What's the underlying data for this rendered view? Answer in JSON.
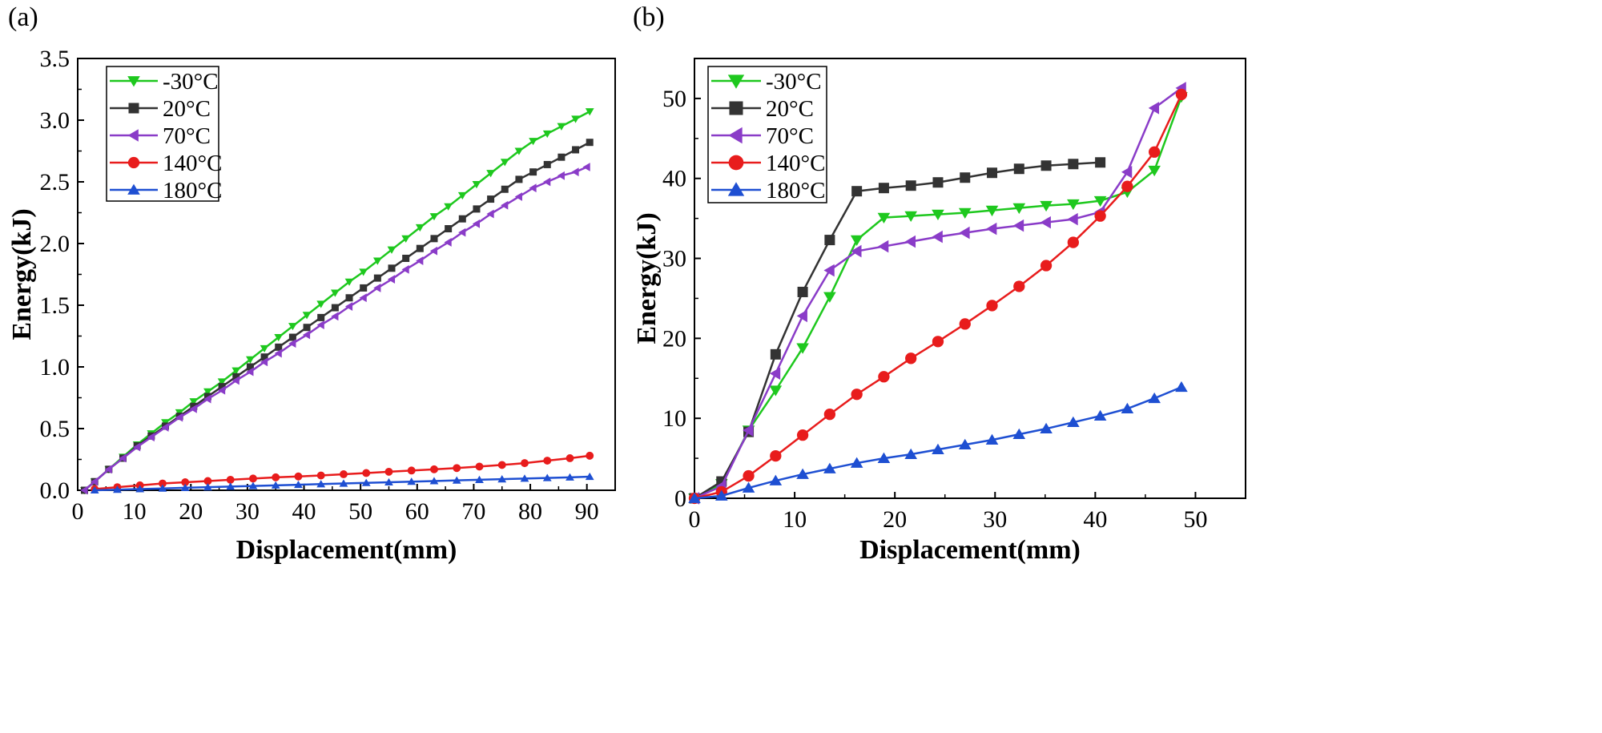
{
  "chart_data": [
    {
      "type": "line",
      "panel_label": "(a)",
      "xlabel": "Displacement(mm)",
      "ylabel": "Energy(kJ)",
      "xlim": [
        0,
        95
      ],
      "ylim": [
        0,
        3.5
      ],
      "xticks": [
        0,
        10,
        20,
        30,
        40,
        50,
        60,
        70,
        80,
        90
      ],
      "xtick_labels": [
        "0",
        "10",
        "20",
        "30",
        "40",
        "50",
        "60",
        "70",
        "80",
        "90"
      ],
      "yticks": [
        0,
        0.5,
        1.0,
        1.5,
        2.0,
        2.5,
        3.0,
        3.5
      ],
      "ytick_labels": [
        "0.0",
        "0.5",
        "1.0",
        "1.5",
        "2.0",
        "2.5",
        "3.0",
        "3.5"
      ],
      "legend_position": "top-left",
      "series": [
        {
          "name": "-30°C",
          "color": "#1ec81e",
          "marker": "triangle-down",
          "x": [
            1.2,
            3,
            5.5,
            8,
            10.5,
            13,
            15.5,
            18,
            20.5,
            23,
            25.5,
            28,
            30.5,
            33,
            35.5,
            38,
            40.5,
            43,
            45.5,
            48,
            50.5,
            53,
            55.5,
            58,
            60.5,
            63,
            65.5,
            68,
            70.5,
            73,
            75.5,
            78,
            80.5,
            83,
            85.5,
            88,
            90.5
          ],
          "y": [
            0.0,
            0.07,
            0.17,
            0.27,
            0.37,
            0.46,
            0.55,
            0.63,
            0.72,
            0.8,
            0.88,
            0.97,
            1.06,
            1.15,
            1.24,
            1.33,
            1.42,
            1.51,
            1.6,
            1.69,
            1.77,
            1.86,
            1.95,
            2.04,
            2.13,
            2.22,
            2.3,
            2.39,
            2.48,
            2.57,
            2.66,
            2.75,
            2.83,
            2.89,
            2.95,
            3.01,
            3.07
          ]
        },
        {
          "name": "20°C",
          "color": "#333333",
          "marker": "square",
          "x": [
            1.2,
            3,
            5.5,
            8,
            10.5,
            13,
            15.5,
            18,
            20.5,
            23,
            25.5,
            28,
            30.5,
            33,
            35.5,
            38,
            40.5,
            43,
            45.5,
            48,
            50.5,
            53,
            55.5,
            58,
            60.5,
            63,
            65.5,
            68,
            70.5,
            73,
            75.5,
            78,
            80.5,
            83,
            85.5,
            88,
            90.5
          ],
          "y": [
            0.0,
            0.07,
            0.17,
            0.26,
            0.36,
            0.44,
            0.52,
            0.6,
            0.68,
            0.76,
            0.84,
            0.92,
            1.0,
            1.08,
            1.16,
            1.24,
            1.32,
            1.4,
            1.48,
            1.56,
            1.64,
            1.72,
            1.8,
            1.88,
            1.96,
            2.04,
            2.12,
            2.2,
            2.28,
            2.36,
            2.44,
            2.52,
            2.58,
            2.64,
            2.7,
            2.76,
            2.82
          ]
        },
        {
          "name": "70°C",
          "color": "#8a3cc8",
          "marker": "triangle-left",
          "x": [
            1.2,
            3,
            5.5,
            8,
            10.5,
            13,
            15.5,
            18,
            20.5,
            23,
            25.5,
            28,
            30.5,
            33,
            35.5,
            38,
            40.5,
            43,
            45.5,
            48,
            50.5,
            53,
            55.5,
            58,
            60.5,
            63,
            65.5,
            68,
            70.5,
            73,
            75.5,
            78,
            80.5,
            83,
            85.5,
            88,
            90
          ],
          "y": [
            0.0,
            0.07,
            0.17,
            0.26,
            0.35,
            0.43,
            0.51,
            0.59,
            0.66,
            0.74,
            0.81,
            0.89,
            0.96,
            1.04,
            1.11,
            1.19,
            1.26,
            1.34,
            1.41,
            1.49,
            1.56,
            1.64,
            1.71,
            1.79,
            1.86,
            1.94,
            2.01,
            2.09,
            2.16,
            2.24,
            2.31,
            2.38,
            2.45,
            2.5,
            2.55,
            2.58,
            2.62
          ]
        },
        {
          "name": "140°C",
          "color": "#e81c1c",
          "marker": "circle",
          "x": [
            3,
            7,
            11,
            15,
            19,
            23,
            27,
            31,
            35,
            39,
            43,
            47,
            51,
            55,
            59,
            63,
            67,
            71,
            75,
            79,
            83,
            87,
            90.5
          ],
          "y": [
            0.01,
            0.025,
            0.04,
            0.055,
            0.065,
            0.075,
            0.085,
            0.095,
            0.105,
            0.112,
            0.12,
            0.13,
            0.14,
            0.15,
            0.16,
            0.17,
            0.18,
            0.192,
            0.205,
            0.22,
            0.24,
            0.26,
            0.28
          ]
        },
        {
          "name": "180°C",
          "color": "#1e4fd2",
          "marker": "triangle-up",
          "x": [
            3,
            7,
            11,
            15,
            19,
            23,
            27,
            31,
            35,
            39,
            43,
            47,
            51,
            55,
            59,
            63,
            67,
            71,
            75,
            79,
            83,
            87,
            90.5
          ],
          "y": [
            0.0,
            0.005,
            0.01,
            0.015,
            0.02,
            0.025,
            0.03,
            0.035,
            0.04,
            0.045,
            0.05,
            0.055,
            0.06,
            0.065,
            0.07,
            0.075,
            0.08,
            0.085,
            0.09,
            0.095,
            0.1,
            0.105,
            0.11
          ]
        }
      ]
    },
    {
      "type": "line",
      "panel_label": "(b)",
      "xlabel": "Displacement(mm)",
      "ylabel": "Energy(kJ)",
      "xlim": [
        0,
        55
      ],
      "ylim": [
        0,
        55
      ],
      "xticks": [
        0,
        10,
        20,
        30,
        40,
        50
      ],
      "xtick_labels": [
        "0",
        "10",
        "20",
        "30",
        "40",
        "50"
      ],
      "yticks": [
        0,
        10,
        20,
        30,
        40,
        50
      ],
      "ytick_labels": [
        "0",
        "10",
        "20",
        "30",
        "40",
        "50"
      ],
      "legend_position": "top-left",
      "series": [
        {
          "name": "-30°C",
          "color": "#1ec81e",
          "marker": "triangle-down",
          "x": [
            0,
            2.7,
            5.4,
            8.1,
            10.8,
            13.5,
            16.2,
            18.9,
            21.6,
            24.3,
            27,
            29.7,
            32.4,
            35.1,
            37.8,
            40.5,
            43.2,
            45.9,
            48.6
          ],
          "y": [
            0,
            1.8,
            8.5,
            13.5,
            18.8,
            25.2,
            32.3,
            35.1,
            35.3,
            35.5,
            35.7,
            36.0,
            36.3,
            36.6,
            36.8,
            37.2,
            38.3,
            41.0,
            50.2
          ]
        },
        {
          "name": "20°C",
          "color": "#333333",
          "marker": "square",
          "x": [
            0,
            2.7,
            5.4,
            8.1,
            10.8,
            13.5,
            16.2,
            18.9,
            21.6,
            24.3,
            27,
            29.7,
            32.4,
            35.1,
            37.8,
            40.5
          ],
          "y": [
            0,
            2.1,
            8.3,
            18.0,
            25.8,
            32.3,
            38.4,
            38.8,
            39.1,
            39.5,
            40.1,
            40.7,
            41.2,
            41.6,
            41.8,
            42.0
          ]
        },
        {
          "name": "70°C",
          "color": "#8a3cc8",
          "marker": "triangle-left",
          "x": [
            0,
            2.7,
            5.4,
            8.1,
            10.8,
            13.5,
            16.2,
            18.9,
            21.6,
            24.3,
            27,
            29.7,
            32.4,
            35.1,
            37.8,
            40.5,
            43.2,
            45.9,
            48.6
          ],
          "y": [
            0,
            1.5,
            8.5,
            15.6,
            22.8,
            28.5,
            30.9,
            31.5,
            32.1,
            32.7,
            33.2,
            33.7,
            34.1,
            34.5,
            34.9,
            35.8,
            40.8,
            48.8,
            51.3
          ]
        },
        {
          "name": "140°C",
          "color": "#e81c1c",
          "marker": "circle",
          "x": [
            0,
            2.7,
            5.4,
            8.1,
            10.8,
            13.5,
            16.2,
            18.9,
            21.6,
            24.3,
            27,
            29.7,
            32.4,
            35.1,
            37.8,
            40.5,
            43.2,
            45.9,
            48.6
          ],
          "y": [
            0,
            0.8,
            2.8,
            5.3,
            7.9,
            10.5,
            13.0,
            15.2,
            17.5,
            19.6,
            21.8,
            24.1,
            26.5,
            29.1,
            32.0,
            35.3,
            39.0,
            43.3,
            50.5
          ]
        },
        {
          "name": "180°C",
          "color": "#1e4fd2",
          "marker": "triangle-up",
          "x": [
            0,
            2.7,
            5.4,
            8.1,
            10.8,
            13.5,
            16.2,
            18.9,
            21.6,
            24.3,
            27,
            29.7,
            32.4,
            35.1,
            37.8,
            40.5,
            43.2,
            45.9,
            48.6
          ],
          "y": [
            0,
            0.3,
            1.3,
            2.2,
            3.0,
            3.7,
            4.4,
            5.0,
            5.5,
            6.1,
            6.7,
            7.3,
            8.0,
            8.7,
            9.5,
            10.3,
            11.2,
            12.5,
            13.9
          ]
        }
      ]
    }
  ]
}
